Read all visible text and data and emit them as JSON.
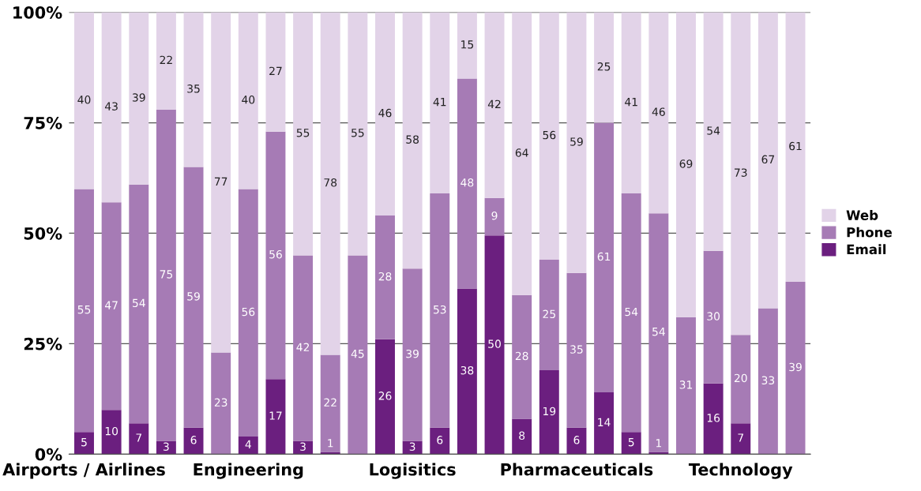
{
  "chart_data": {
    "type": "bar",
    "stacked": true,
    "categories": [
      "Airports / Airlines",
      null,
      null,
      null,
      null,
      null,
      "Engineering",
      null,
      null,
      null,
      null,
      null,
      "Logisitics",
      null,
      null,
      null,
      null,
      null,
      "Pharmaceuticals",
      null,
      null,
      null,
      null,
      null,
      "Technology",
      null,
      null
    ],
    "series": [
      {
        "name": "Email",
        "color": "#6b1f7f",
        "values": [
          5,
          10,
          7,
          3,
          6,
          0,
          4,
          17,
          3,
          0.5,
          0,
          26,
          3,
          6,
          37.5,
          49.5,
          8,
          19,
          6,
          14,
          5,
          0.5,
          0,
          16,
          7,
          0,
          0
        ],
        "value_labels": [
          "5",
          "10",
          "7",
          "3",
          "6",
          null,
          "4",
          "17",
          "3",
          "1",
          null,
          "26",
          "3",
          "6",
          "38",
          "50",
          "8",
          "19",
          "6",
          "14",
          "5",
          "1",
          null,
          "16",
          "7",
          null,
          null
        ]
      },
      {
        "name": "Phone",
        "color": "#a67bb5",
        "values": [
          55,
          47,
          54,
          75,
          59,
          23,
          56,
          56,
          42,
          22,
          45,
          28,
          39,
          53,
          47.5,
          8.5,
          28,
          25,
          35,
          61,
          54,
          54,
          31,
          30,
          20,
          33,
          39
        ],
        "value_labels": [
          "55",
          "47",
          "54",
          "75",
          "59",
          "23",
          "56",
          "56",
          "42",
          "22",
          "45",
          "28",
          "39",
          "53",
          "48",
          "9",
          "28",
          "25",
          "35",
          "61",
          "54",
          "54",
          "31",
          "30",
          "20",
          "33",
          "39"
        ]
      },
      {
        "name": "Web",
        "color": "#e2d3e8",
        "values": [
          40,
          43,
          39,
          22,
          35,
          77,
          40,
          27,
          55,
          77.5,
          55,
          46,
          58,
          41,
          15,
          42,
          64,
          56,
          59,
          25,
          41,
          45.5,
          69,
          54,
          73,
          67,
          61
        ],
        "value_labels": [
          "40",
          "43",
          "39",
          "22",
          "35",
          "77",
          "40",
          "27",
          "55",
          "78",
          "55",
          "46",
          "58",
          "41",
          "15",
          "42",
          "64",
          "56",
          "59",
          "25",
          "41",
          "46",
          "69",
          "54",
          "73",
          "67",
          "61"
        ]
      }
    ],
    "ylim": [
      0,
      100
    ],
    "yticks": [
      {
        "value": 0,
        "label": "0%"
      },
      {
        "value": 25,
        "label": "25%"
      },
      {
        "value": 50,
        "label": "50%"
      },
      {
        "value": 75,
        "label": "75%"
      },
      {
        "value": 100,
        "label": "100%"
      }
    ],
    "grid": "y",
    "legend": "right"
  }
}
